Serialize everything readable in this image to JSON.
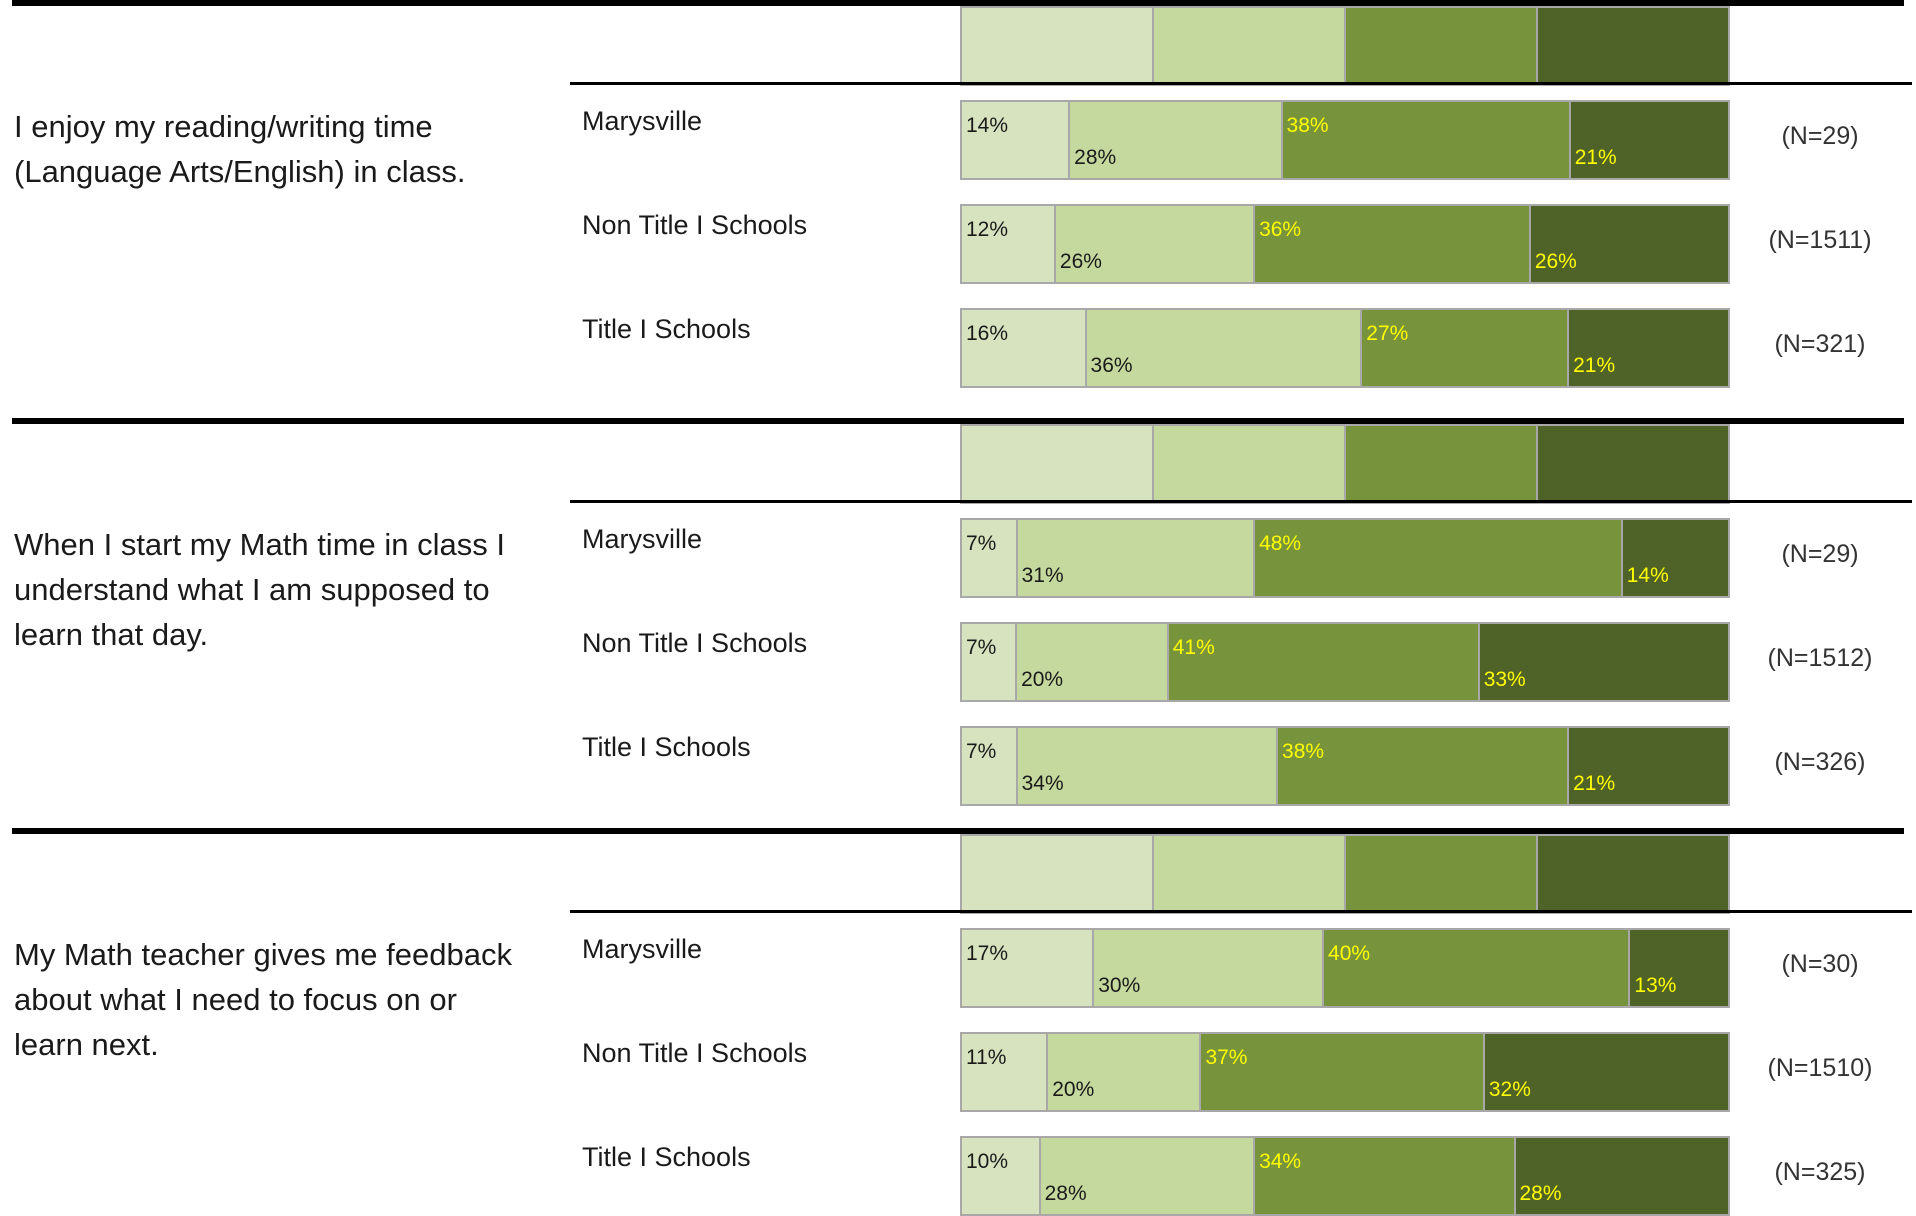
{
  "chart_data": {
    "type": "bar",
    "orientation": "horizontal",
    "stacked": true,
    "value_unit": "%",
    "colors": [
      "#d6e3be",
      "#c5d89d",
      "#77933c",
      "#4f6228"
    ],
    "label_colors": [
      "#1a1a1a",
      "#1a1a1a",
      "#ffff00",
      "#ffff00"
    ],
    "questions": [
      {
        "text": "I enjoy my reading/writing time (Language Arts/English) in class.",
        "groups": [
          {
            "name": "Marysville",
            "values": [
              14,
              28,
              38,
              21
            ],
            "labels": [
              "14%",
              "28%",
              "38%",
              "21%"
            ],
            "n": "(N=29)"
          },
          {
            "name": "Non Title I Schools",
            "values": [
              12,
              26,
              36,
              26
            ],
            "labels": [
              "12%",
              "26%",
              "36%",
              "26%"
            ],
            "n": "(N=1511)"
          },
          {
            "name": "Title I Schools",
            "values": [
              16,
              36,
              27,
              21
            ],
            "labels": [
              "16%",
              "36%",
              "27%",
              "21%"
            ],
            "n": "(N=321)"
          }
        ]
      },
      {
        "text": "When I start my Math time in class I understand what I am supposed to learn that day.",
        "groups": [
          {
            "name": "Marysville",
            "values": [
              7,
              31,
              48,
              14
            ],
            "labels": [
              "7%",
              "31%",
              "48%",
              "14%"
            ],
            "n": "(N=29)"
          },
          {
            "name": "Non Title I Schools",
            "values": [
              7,
              20,
              41,
              33
            ],
            "labels": [
              "7%",
              "20%",
              "41%",
              "33%"
            ],
            "n": "(N=1512)"
          },
          {
            "name": "Title I Schools",
            "values": [
              7,
              34,
              38,
              21
            ],
            "labels": [
              "7%",
              "34%",
              "38%",
              "21%"
            ],
            "n": "(N=326)"
          }
        ]
      },
      {
        "text": "My Math teacher gives me feedback about what I need to focus on or learn next.",
        "groups": [
          {
            "name": "Marysville",
            "values": [
              17,
              30,
              40,
              13
            ],
            "labels": [
              "17%",
              "30%",
              "40%",
              "13%"
            ],
            "n": "(N=30)"
          },
          {
            "name": "Non Title I Schools",
            "values": [
              11,
              20,
              37,
              32
            ],
            "labels": [
              "11%",
              "20%",
              "37%",
              "32%"
            ],
            "n": "(N=1510)"
          },
          {
            "name": "Title I Schools",
            "values": [
              10,
              28,
              34,
              28
            ],
            "labels": [
              "10%",
              "28%",
              "34%",
              "28%"
            ],
            "n": "(N=325)"
          }
        ]
      }
    ]
  }
}
